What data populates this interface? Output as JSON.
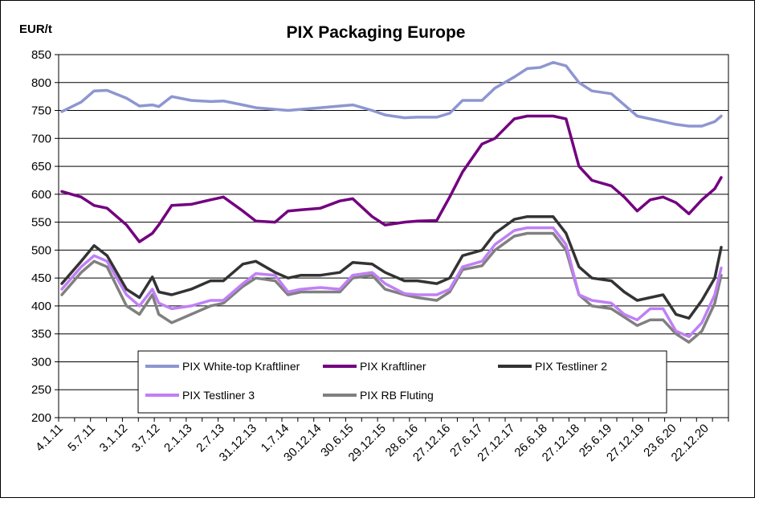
{
  "chart_data": {
    "type": "line",
    "title": "PIX Packaging Europe",
    "ylabel": "EUR/t",
    "xlabel": "",
    "ylim": [
      200,
      850
    ],
    "yticks": [
      200,
      250,
      300,
      350,
      400,
      450,
      500,
      550,
      600,
      650,
      700,
      750,
      800,
      850
    ],
    "xtick_labels": [
      "4.1.11",
      "5.7.11",
      "3.1.12",
      "3.7.12",
      "2.1.13",
      "2.7.13",
      "31.12.13",
      "1.7.14",
      "30.12.14",
      "30.6.15",
      "29.12.15",
      "28.6.16",
      "27.12.16",
      "27.6.17",
      "27.12.17",
      "26.6.18",
      "27.12.18",
      "25.6.19",
      "27.12.19",
      "23.6.20",
      "22.12.20"
    ],
    "grid": "horizontal",
    "legend_position": "bottom-inside",
    "x": [
      2011.0,
      2011.3,
      2011.5,
      2011.7,
      2012.0,
      2012.2,
      2012.4,
      2012.5,
      2012.7,
      2013.0,
      2013.3,
      2013.5,
      2013.8,
      2014.0,
      2014.3,
      2014.5,
      2014.7,
      2015.0,
      2015.3,
      2015.5,
      2015.8,
      2016.0,
      2016.3,
      2016.5,
      2016.8,
      2017.0,
      2017.2,
      2017.5,
      2017.7,
      2018.0,
      2018.2,
      2018.4,
      2018.6,
      2018.8,
      2019.0,
      2019.2,
      2019.5,
      2019.7,
      2019.9,
      2020.1,
      2020.3,
      2020.5,
      2020.7,
      2020.9,
      2021.1,
      2021.2
    ],
    "series": [
      {
        "name": "PIX White-top Kraftliner",
        "color": "#8e96d0",
        "values": [
          748,
          765,
          785,
          786,
          772,
          758,
          760,
          757,
          775,
          768,
          766,
          767,
          760,
          755,
          752,
          750,
          752,
          755,
          758,
          760,
          750,
          742,
          737,
          738,
          738,
          745,
          768,
          768,
          790,
          810,
          825,
          827,
          836,
          830,
          800,
          785,
          780,
          760,
          740,
          735,
          730,
          725,
          722,
          722,
          730,
          740
        ]
      },
      {
        "name": "PIX Kraftliner",
        "color": "#73007f",
        "values": [
          605,
          595,
          580,
          575,
          545,
          515,
          530,
          545,
          580,
          582,
          590,
          595,
          570,
          552,
          550,
          570,
          572,
          575,
          588,
          592,
          560,
          545,
          550,
          552,
          553,
          595,
          640,
          690,
          700,
          735,
          740,
          740,
          740,
          735,
          650,
          625,
          615,
          595,
          570,
          590,
          595,
          585,
          565,
          590,
          610,
          630
        ]
      },
      {
        "name": "PIX Testliner 2",
        "color": "#333333",
        "values": [
          440,
          480,
          508,
          490,
          430,
          415,
          452,
          425,
          420,
          430,
          445,
          445,
          475,
          480,
          460,
          450,
          455,
          455,
          460,
          478,
          475,
          460,
          445,
          445,
          440,
          450,
          490,
          500,
          530,
          555,
          560,
          560,
          560,
          530,
          470,
          450,
          445,
          425,
          410,
          415,
          420,
          385,
          378,
          410,
          450,
          505
        ]
      },
      {
        "name": "PIX Testliner 3",
        "color": "#c080f5",
        "values": [
          430,
          470,
          490,
          480,
          420,
          400,
          430,
          405,
          395,
          400,
          410,
          410,
          440,
          458,
          455,
          425,
          430,
          433,
          430,
          455,
          460,
          440,
          422,
          420,
          420,
          430,
          470,
          480,
          510,
          535,
          540,
          540,
          540,
          510,
          420,
          410,
          405,
          385,
          375,
          395,
          395,
          355,
          345,
          370,
          420,
          468
        ]
      },
      {
        "name": "PIX RB Fluting",
        "color": "#808080",
        "values": [
          420,
          460,
          480,
          470,
          400,
          385,
          420,
          385,
          370,
          385,
          400,
          405,
          435,
          450,
          445,
          420,
          425,
          425,
          425,
          450,
          455,
          430,
          420,
          415,
          410,
          425,
          465,
          472,
          500,
          525,
          530,
          530,
          530,
          500,
          420,
          400,
          395,
          380,
          365,
          375,
          375,
          350,
          335,
          355,
          405,
          455
        ]
      }
    ]
  }
}
